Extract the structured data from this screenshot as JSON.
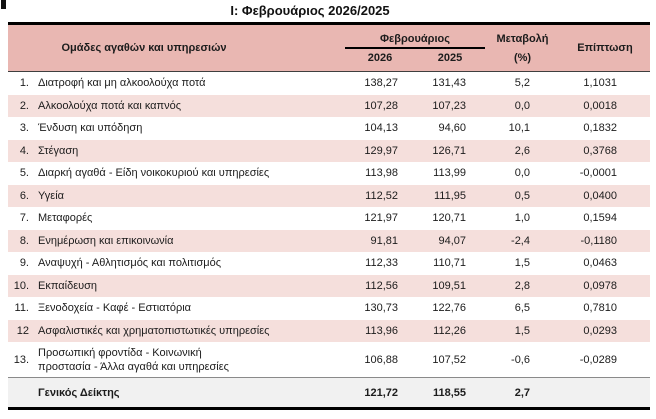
{
  "page": {
    "title": "Ι: Φεβρουάριος 2026/2025"
  },
  "table": {
    "headers": {
      "groups": "Ομάδες αγαθών και υπηρεσιών",
      "month": "Φεβρουάριος",
      "year_left": "2026",
      "year_right": "2025",
      "change_line1": "Μεταβολή",
      "change_line2": "(%)",
      "impact": "Επίπτωση"
    },
    "rows": [
      {
        "num": "1.",
        "label": "Διατροφή και μη αλκοολούχα ποτά",
        "index_2026": "138,27",
        "index_2025": "131,43",
        "change_pct": "5,2",
        "impact": "1,1031"
      },
      {
        "num": "2.",
        "label": "Αλκοολούχα ποτά και καπνός",
        "index_2026": "107,28",
        "index_2025": "107,23",
        "change_pct": "0,0",
        "impact": "0,0018"
      },
      {
        "num": "3.",
        "label": "Ένδυση και υπόδηση",
        "index_2026": "104,13",
        "index_2025": "94,60",
        "change_pct": "10,1",
        "impact": "0,1832"
      },
      {
        "num": "4.",
        "label": "Στέγαση",
        "index_2026": "129,97",
        "index_2025": "126,71",
        "change_pct": "2,6",
        "impact": "0,3768"
      },
      {
        "num": "5.",
        "label": "Διαρκή αγαθά - Είδη νοικοκυριού και υπηρεσίες",
        "index_2026": "113,98",
        "index_2025": "113,99",
        "change_pct": "0,0",
        "impact": "-0,0001"
      },
      {
        "num": "6.",
        "label": "Υγεία",
        "index_2026": "112,52",
        "index_2025": "111,95",
        "change_pct": "0,5",
        "impact": "0,0400"
      },
      {
        "num": "7.",
        "label": "Μεταφορές",
        "index_2026": "121,97",
        "index_2025": "120,71",
        "change_pct": "1,0",
        "impact": "0,1594"
      },
      {
        "num": "8.",
        "label": "Ενημέρωση και επικοινωνία",
        "index_2026": "91,81",
        "index_2025": "94,07",
        "change_pct": "-2,4",
        "impact": "-0,1180"
      },
      {
        "num": "9.",
        "label": "Αναψυχή - Αθλητισμός και πολιτισμός",
        "index_2026": "112,33",
        "index_2025": "110,71",
        "change_pct": "1,5",
        "impact": "0,0463"
      },
      {
        "num": "10.",
        "label": "Εκπαίδευση",
        "index_2026": "112,56",
        "index_2025": "109,51",
        "change_pct": "2,8",
        "impact": "0,0978"
      },
      {
        "num": "11.",
        "label": "Ξενοδοχεία - Καφέ - Εστιατόρια",
        "index_2026": "130,73",
        "index_2025": "122,76",
        "change_pct": "6,5",
        "impact": "0,7810"
      },
      {
        "num": "12",
        "label": "Ασφαλιστικές και χρηματοπιστωτικές υπηρεσίες",
        "index_2026": "113,96",
        "index_2025": "112,26",
        "change_pct": "1,5",
        "impact": "0,0293"
      },
      {
        "num": "13.",
        "label": "Προσωπική φροντίδα - Κοινωνική\nπροστασία - Άλλα αγαθά και υπηρεσίες",
        "index_2026": "106,88",
        "index_2025": "107,52",
        "change_pct": "-0,6",
        "impact": "-0,0289"
      }
    ],
    "footer": {
      "label": "Γενικός Δείκτης",
      "index_2026": "121,72",
      "index_2025": "118,55",
      "change_pct": "2,7",
      "impact": ""
    }
  },
  "colors": {
    "header_bg": "#e9b7b2",
    "stripe_bg": "#f5dfdc",
    "footer_bg": "#f1f1f1",
    "rule": "#000000"
  }
}
